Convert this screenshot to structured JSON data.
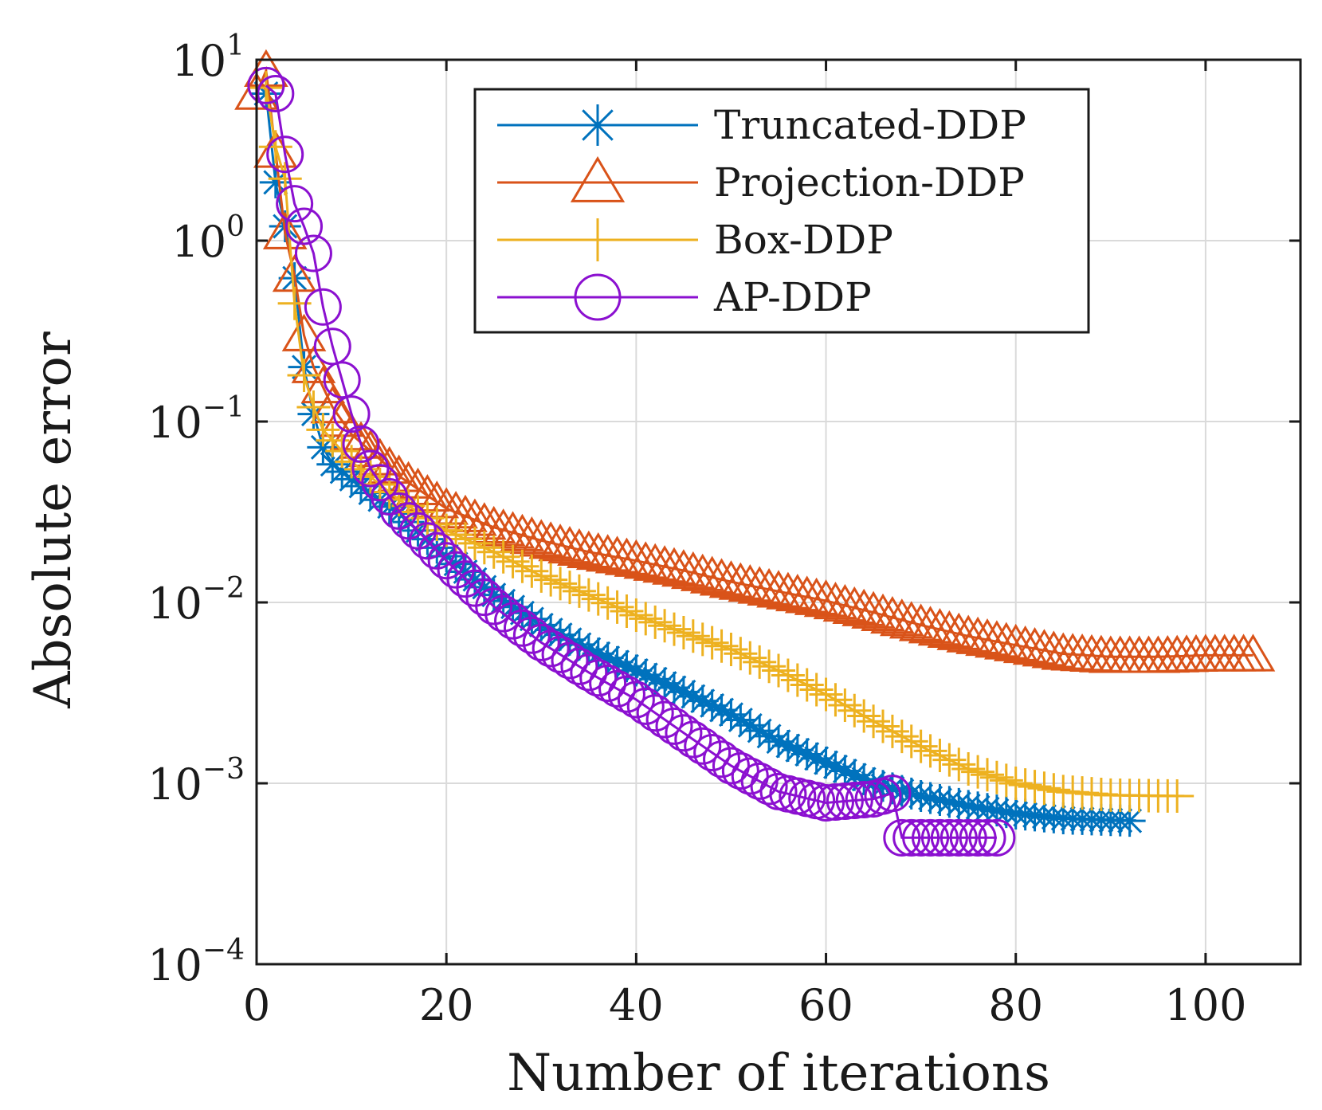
{
  "chart_data": {
    "type": "line",
    "title": "",
    "xlabel": "Number of iterations",
    "ylabel": "Absolute error",
    "xlim": [
      0,
      110
    ],
    "ylim": [
      0.0001,
      10
    ],
    "yscale": "log",
    "grid": true,
    "legend_position": "top-center",
    "x_ticks": [
      {
        "value": 0,
        "label": "0"
      },
      {
        "value": 20,
        "label": "20"
      },
      {
        "value": 40,
        "label": "40"
      },
      {
        "value": 60,
        "label": "60"
      },
      {
        "value": 80,
        "label": "80"
      },
      {
        "value": 100,
        "label": "100"
      }
    ],
    "y_ticks": [
      {
        "value": 10,
        "base": "10",
        "exp": "1"
      },
      {
        "value": 1,
        "base": "10",
        "exp": "0"
      },
      {
        "value": 0.1,
        "base": "10",
        "exp": "−1"
      },
      {
        "value": 0.01,
        "base": "10",
        "exp": "−2"
      },
      {
        "value": 0.001,
        "base": "10",
        "exp": "−3"
      },
      {
        "value": 0.0001,
        "base": "10",
        "exp": "−4"
      }
    ],
    "series": [
      {
        "name": "Truncated-DDP",
        "color": "#0072BD",
        "marker": "asterisk",
        "iterations": 92,
        "knots": [
          [
            1,
            6.5
          ],
          [
            2,
            2.1
          ],
          [
            3,
            1.2
          ],
          [
            4,
            0.62
          ],
          [
            5,
            0.2
          ],
          [
            6,
            0.11
          ],
          [
            7,
            0.072
          ],
          [
            8,
            0.058
          ],
          [
            10,
            0.048
          ],
          [
            15,
            0.031
          ],
          [
            20,
            0.018
          ],
          [
            25,
            0.011
          ],
          [
            30,
            0.0075
          ],
          [
            35,
            0.0055
          ],
          [
            40,
            0.0042
          ],
          [
            45,
            0.0032
          ],
          [
            50,
            0.0024
          ],
          [
            55,
            0.0017
          ],
          [
            60,
            0.0013
          ],
          [
            65,
            0.001
          ],
          [
            70,
            0.00085
          ],
          [
            75,
            0.00075
          ],
          [
            80,
            0.00068
          ],
          [
            85,
            0.00064
          ],
          [
            92,
            0.00062
          ]
        ]
      },
      {
        "name": "Projection-DDP",
        "color": "#D95319",
        "marker": "triangle",
        "iterations": 105,
        "knots": [
          [
            0,
            6.5
          ],
          [
            1,
            8.7
          ],
          [
            2,
            3.1
          ],
          [
            3,
            1.1
          ],
          [
            4,
            0.64
          ],
          [
            5,
            0.3
          ],
          [
            6,
            0.2
          ],
          [
            8,
            0.12
          ],
          [
            10,
            0.085
          ],
          [
            15,
            0.05
          ],
          [
            20,
            0.033
          ],
          [
            25,
            0.026
          ],
          [
            30,
            0.022
          ],
          [
            35,
            0.019
          ],
          [
            40,
            0.017
          ],
          [
            45,
            0.015
          ],
          [
            50,
            0.013
          ],
          [
            55,
            0.0115
          ],
          [
            60,
            0.0102
          ],
          [
            65,
            0.0088
          ],
          [
            70,
            0.0075
          ],
          [
            75,
            0.0065
          ],
          [
            80,
            0.0058
          ],
          [
            85,
            0.0052
          ],
          [
            90,
            0.005
          ],
          [
            95,
            0.005
          ],
          [
            100,
            0.0051
          ],
          [
            105,
            0.0051
          ]
        ]
      },
      {
        "name": "Box-DDP",
        "color": "#EDB120",
        "marker": "plus",
        "iterations": 97,
        "knots": [
          [
            1,
            7.0
          ],
          [
            2,
            3.3
          ],
          [
            3,
            2.2
          ],
          [
            4,
            0.45
          ],
          [
            5,
            0.18
          ],
          [
            6,
            0.12
          ],
          [
            7,
            0.09
          ],
          [
            10,
            0.06
          ],
          [
            15,
            0.037
          ],
          [
            20,
            0.025
          ],
          [
            25,
            0.019
          ],
          [
            30,
            0.014
          ],
          [
            35,
            0.011
          ],
          [
            40,
            0.0085
          ],
          [
            45,
            0.0068
          ],
          [
            50,
            0.0055
          ],
          [
            55,
            0.0042
          ],
          [
            60,
            0.0031
          ],
          [
            65,
            0.0022
          ],
          [
            70,
            0.0016
          ],
          [
            75,
            0.0012
          ],
          [
            80,
            0.001
          ],
          [
            85,
            0.0009
          ],
          [
            90,
            0.00086
          ],
          [
            97,
            0.00085
          ]
        ]
      },
      {
        "name": "AP-DDP",
        "color": "#8B10D0",
        "marker": "circle",
        "iterations": 78,
        "knots": [
          [
            1,
            7.2
          ],
          [
            2,
            6.5
          ],
          [
            3,
            3.0
          ],
          [
            4,
            1.6
          ],
          [
            5,
            1.2
          ],
          [
            6,
            0.85
          ],
          [
            7,
            0.43
          ],
          [
            8,
            0.26
          ],
          [
            9,
            0.17
          ],
          [
            10,
            0.11
          ],
          [
            11,
            0.075
          ],
          [
            12,
            0.055
          ],
          [
            15,
            0.032
          ],
          [
            20,
            0.017
          ],
          [
            25,
            0.0095
          ],
          [
            30,
            0.006
          ],
          [
            35,
            0.0041
          ],
          [
            40,
            0.0029
          ],
          [
            45,
            0.0019
          ],
          [
            50,
            0.00125
          ],
          [
            55,
            0.0009
          ],
          [
            60,
            0.00078
          ],
          [
            65,
            0.00082
          ],
          [
            67,
            0.00088
          ],
          [
            68,
            0.0005
          ],
          [
            70,
            0.0005
          ],
          [
            75,
            0.0005
          ],
          [
            78,
            0.0005
          ]
        ]
      }
    ]
  }
}
